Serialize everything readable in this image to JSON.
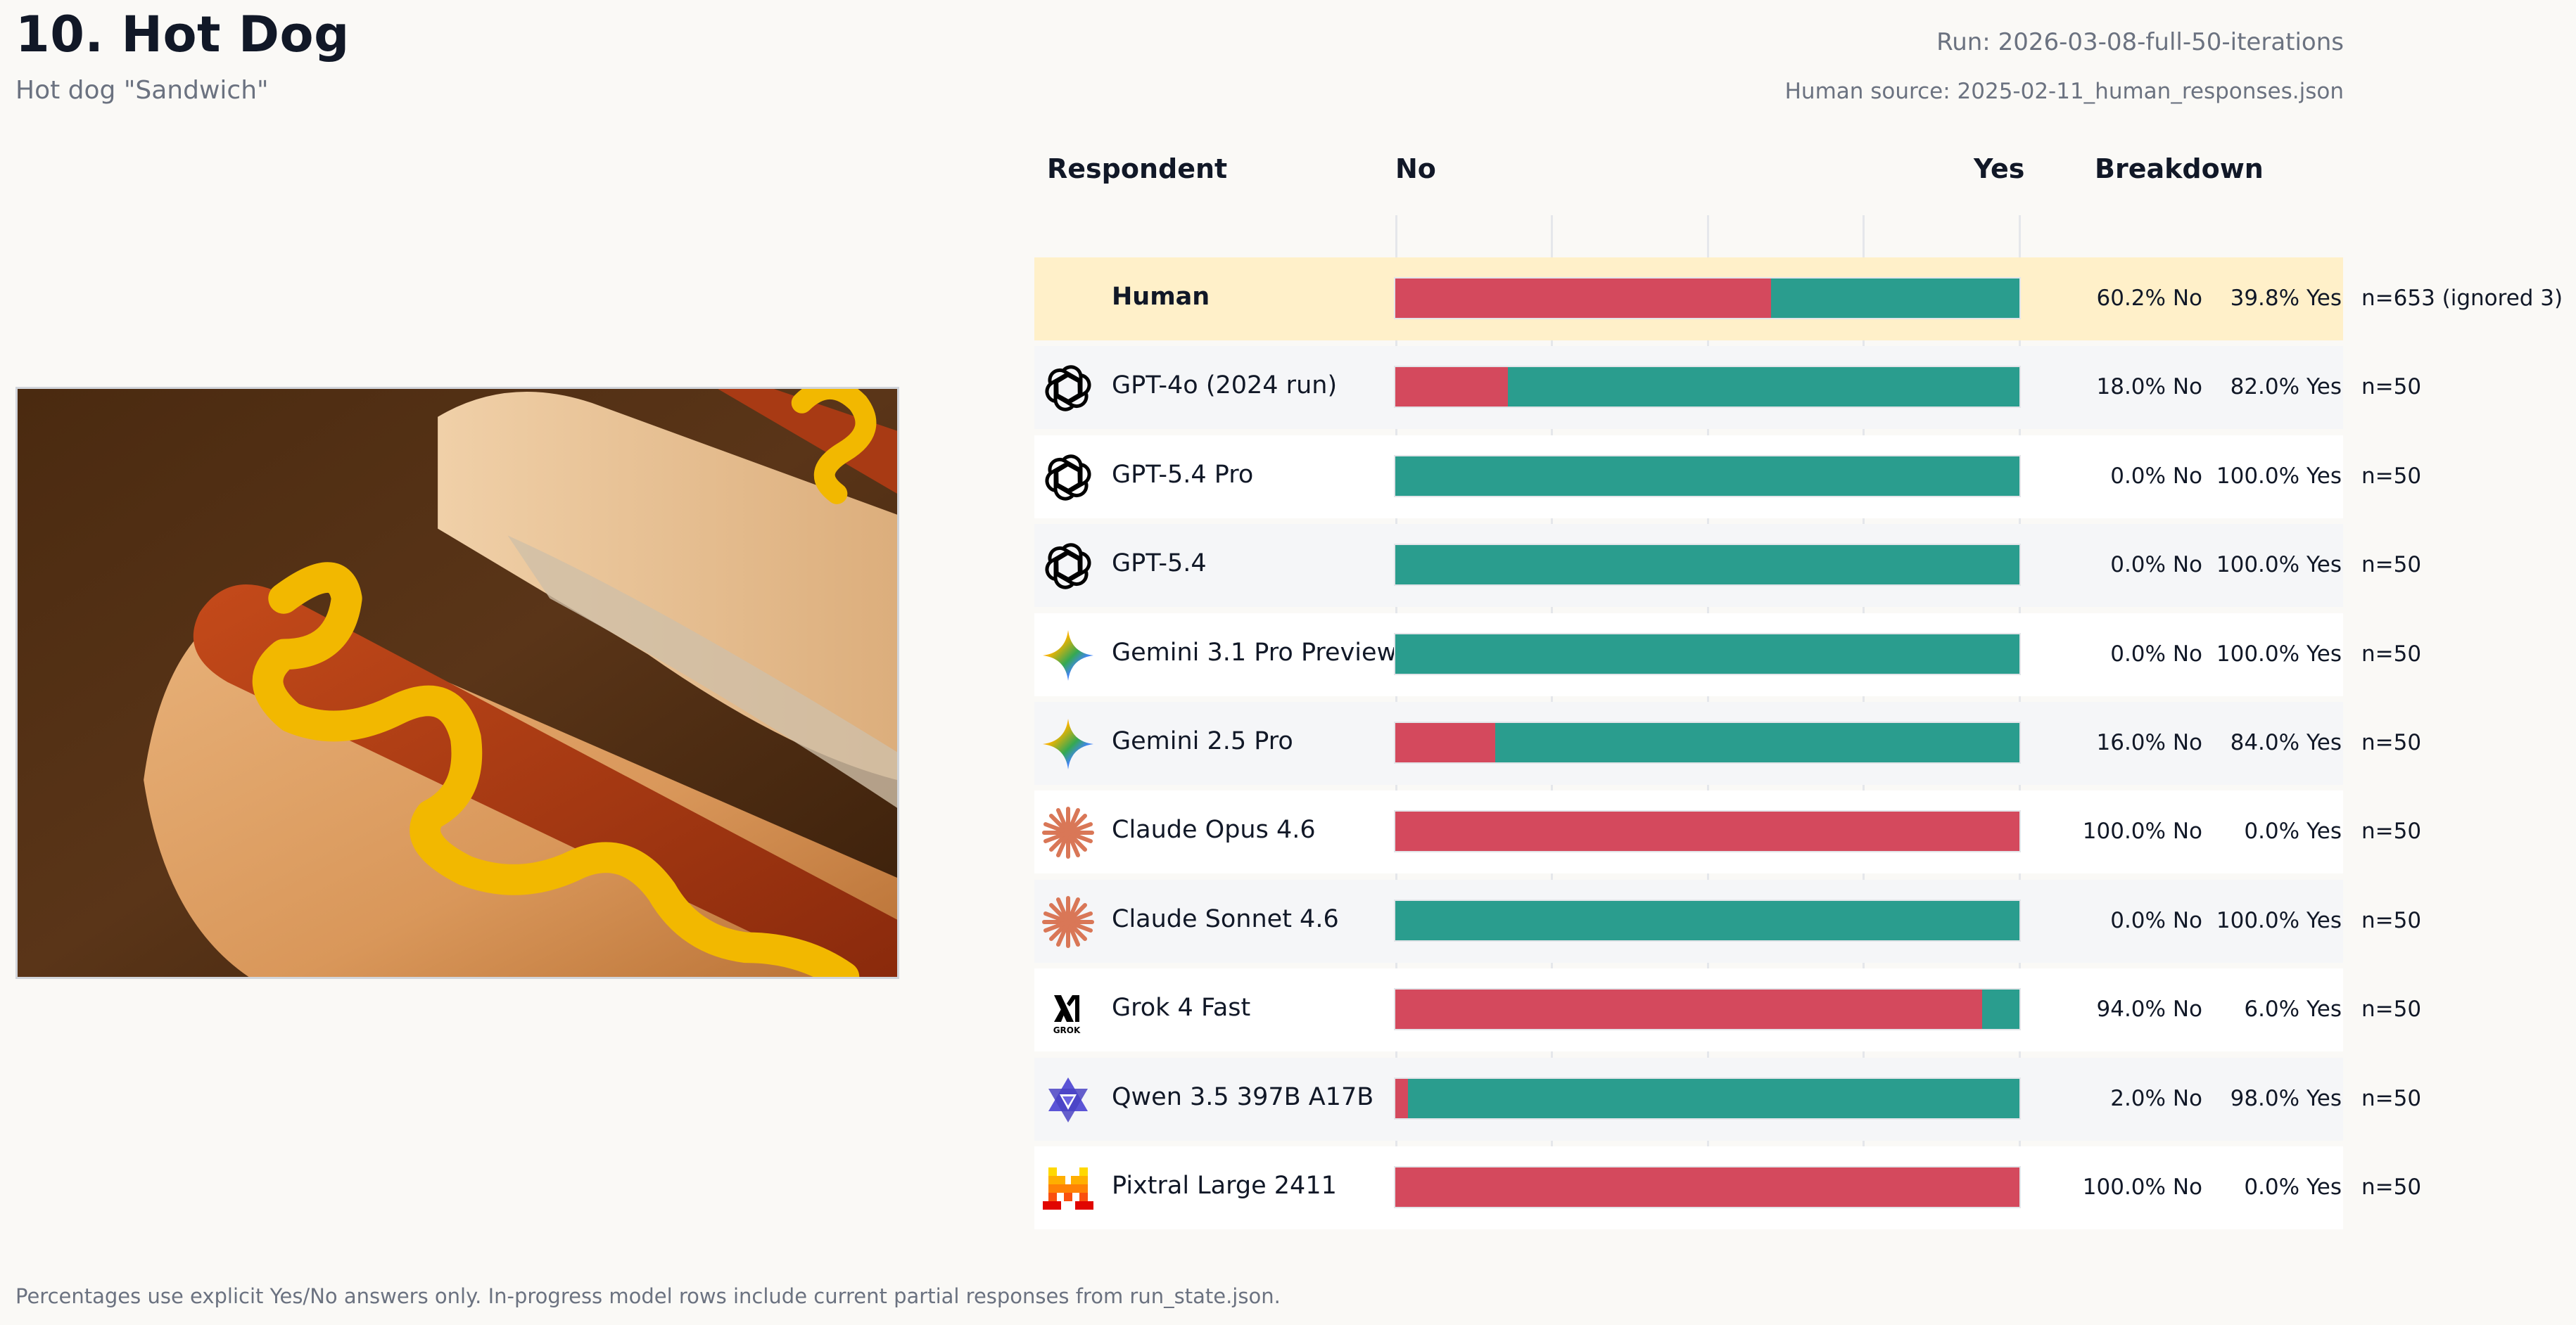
{
  "header": {
    "title": "10. Hot Dog",
    "subtitle": "Hot dog \"Sandwich\"",
    "run": "Run: 2026-03-08-full-50-iterations",
    "human_source": "Human source: 2025-02-11_human_responses.json"
  },
  "image": {
    "alt": "Hot dog with yellow mustard in a bun"
  },
  "table": {
    "col_respondent": "Respondent",
    "col_no": "No",
    "col_yes": "Yes",
    "col_breakdown": "Breakdown"
  },
  "colors": {
    "no": "#d4495d",
    "yes": "#2a9d8e",
    "human_row": "#fff0c9"
  },
  "rows": [
    {
      "name": "Human",
      "icon": "none",
      "no": 60.2,
      "yes": 39.8,
      "no_label": "60.2% No",
      "yes_label": "39.8% Yes",
      "n": "n=653 (ignored 3)"
    },
    {
      "name": "GPT-4o (2024 run)",
      "icon": "openai-icon",
      "no": 18.0,
      "yes": 82.0,
      "no_label": "18.0% No",
      "yes_label": "82.0% Yes",
      "n": "n=50"
    },
    {
      "name": "GPT-5.4 Pro",
      "icon": "openai-icon",
      "no": 0.0,
      "yes": 100.0,
      "no_label": "0.0% No",
      "yes_label": "100.0% Yes",
      "n": "n=50"
    },
    {
      "name": "GPT-5.4",
      "icon": "openai-icon",
      "no": 0.0,
      "yes": 100.0,
      "no_label": "0.0% No",
      "yes_label": "100.0% Yes",
      "n": "n=50"
    },
    {
      "name": "Gemini 3.1 Pro Preview",
      "icon": "gemini-icon",
      "no": 0.0,
      "yes": 100.0,
      "no_label": "0.0% No",
      "yes_label": "100.0% Yes",
      "n": "n=50"
    },
    {
      "name": "Gemini 2.5 Pro",
      "icon": "gemini-icon",
      "no": 16.0,
      "yes": 84.0,
      "no_label": "16.0% No",
      "yes_label": "84.0% Yes",
      "n": "n=50"
    },
    {
      "name": "Claude Opus 4.6",
      "icon": "claude-icon",
      "no": 100.0,
      "yes": 0.0,
      "no_label": "100.0% No",
      "yes_label": "0.0% Yes",
      "n": "n=50"
    },
    {
      "name": "Claude Sonnet 4.6",
      "icon": "claude-icon",
      "no": 0.0,
      "yes": 100.0,
      "no_label": "0.0% No",
      "yes_label": "100.0% Yes",
      "n": "n=50"
    },
    {
      "name": "Grok 4 Fast",
      "icon": "grok-icon",
      "no": 94.0,
      "yes": 6.0,
      "no_label": "94.0% No",
      "yes_label": "6.0% Yes",
      "n": "n=50"
    },
    {
      "name": "Qwen 3.5 397B A17B",
      "icon": "qwen-icon",
      "no": 2.0,
      "yes": 98.0,
      "no_label": "2.0% No",
      "yes_label": "98.0% Yes",
      "n": "n=50"
    },
    {
      "name": "Pixtral Large 2411",
      "icon": "mistral-icon",
      "no": 100.0,
      "yes": 0.0,
      "no_label": "100.0% No",
      "yes_label": "0.0% Yes",
      "n": "n=50"
    }
  ],
  "footer": "Percentages use explicit Yes/No answers only. In-progress model rows include current partial responses from run_state.json.",
  "chart_data": {
    "type": "bar",
    "stacked": true,
    "orientation": "horizontal",
    "title": "10. Hot Dog",
    "subtitle": "Hot dog \"Sandwich\"",
    "xlabel": "",
    "ylabel": "Respondent",
    "x_ends": [
      "No",
      "Yes"
    ],
    "xlim": [
      0,
      100
    ],
    "grid": true,
    "gridlines_at": [
      0,
      25,
      50,
      75,
      100
    ],
    "categories": [
      "Human",
      "GPT-4o (2024 run)",
      "GPT-5.4 Pro",
      "GPT-5.4",
      "Gemini 3.1 Pro Preview",
      "Gemini 2.5 Pro",
      "Claude Opus 4.6",
      "Claude Sonnet 4.6",
      "Grok 4 Fast",
      "Qwen 3.5 397B A17B",
      "Pixtral Large 2411"
    ],
    "series": [
      {
        "name": "No",
        "color": "#d4495d",
        "values": [
          60.2,
          18.0,
          0.0,
          0.0,
          0.0,
          16.0,
          100.0,
          0.0,
          94.0,
          2.0,
          100.0
        ]
      },
      {
        "name": "Yes",
        "color": "#2a9d8e",
        "values": [
          39.8,
          82.0,
          100.0,
          100.0,
          100.0,
          84.0,
          0.0,
          100.0,
          6.0,
          98.0,
          0.0
        ]
      }
    ],
    "n": [
      "n=653 (ignored 3)",
      "n=50",
      "n=50",
      "n=50",
      "n=50",
      "n=50",
      "n=50",
      "n=50",
      "n=50",
      "n=50",
      "n=50"
    ]
  }
}
